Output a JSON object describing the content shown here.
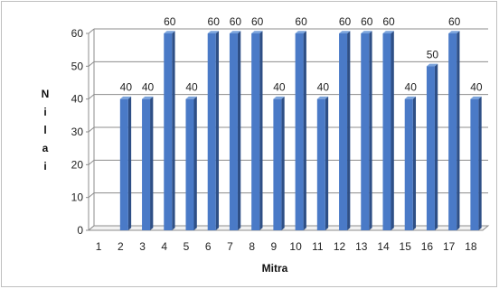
{
  "chart_data": {
    "type": "bar",
    "categories": [
      "1",
      "2",
      "3",
      "4",
      "5",
      "6",
      "7",
      "8",
      "9",
      "10",
      "11",
      "12",
      "13",
      "14",
      "15",
      "16",
      "17",
      "18"
    ],
    "values": [
      0,
      40,
      40,
      60,
      40,
      60,
      60,
      60,
      40,
      60,
      40,
      60,
      60,
      60,
      40,
      50,
      60,
      40
    ],
    "data_labels": [
      "",
      "40",
      "40",
      "60",
      "40",
      "60",
      "60",
      "60",
      "40",
      "60",
      "40",
      "60",
      "60",
      "60",
      "40",
      "50",
      "60",
      "40"
    ],
    "title": "",
    "xlabel": "Mitra",
    "ylabel": "Nilai",
    "ylabel_letters": [
      "N",
      "i",
      "l",
      "a",
      "i"
    ],
    "ylim": [
      0,
      60
    ],
    "yticks": [
      "0",
      "10",
      "20",
      "30",
      "40",
      "50",
      "60"
    ],
    "grid": true,
    "legend": "none",
    "bar_style": "3d-column",
    "colors": {
      "bar_front": "#4a7ac7",
      "bar_side": "#2e4f86",
      "bar_top": "#7aa3dc",
      "grid": "#8c8c8c"
    }
  }
}
